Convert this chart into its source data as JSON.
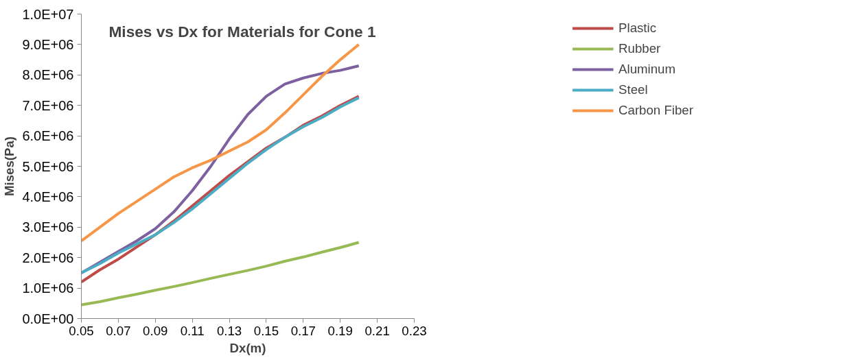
{
  "chart_data": {
    "type": "line",
    "title": "Mises vs Dx for Materials for Cone 1",
    "xlabel": "Dx(m)",
    "ylabel": "Mises(Pa)",
    "x": [
      0.05,
      0.06,
      0.07,
      0.08,
      0.09,
      0.1,
      0.11,
      0.12,
      0.13,
      0.14,
      0.15,
      0.16,
      0.17,
      0.18,
      0.19,
      0.2
    ],
    "series": [
      {
        "name": "Plastic",
        "color": "#be4b48",
        "values": [
          1200000,
          1600000,
          1950000,
          2350000,
          2750000,
          3200000,
          3700000,
          4200000,
          4700000,
          5150000,
          5600000,
          5950000,
          6350000,
          6650000,
          7000000,
          7300000
        ]
      },
      {
        "name": "Rubber",
        "color": "#98b954",
        "values": [
          450000,
          550000,
          680000,
          800000,
          930000,
          1050000,
          1180000,
          1320000,
          1450000,
          1580000,
          1720000,
          1880000,
          2020000,
          2180000,
          2330000,
          2500000
        ]
      },
      {
        "name": "Aluminum",
        "color": "#7d60a0",
        "values": [
          1500000,
          1850000,
          2200000,
          2550000,
          2950000,
          3500000,
          4200000,
          5000000,
          5900000,
          6700000,
          7300000,
          7700000,
          7900000,
          8050000,
          8150000,
          8300000
        ]
      },
      {
        "name": "Steel",
        "color": "#4bacc6",
        "values": [
          1500000,
          1800000,
          2150000,
          2450000,
          2750000,
          3150000,
          3600000,
          4100000,
          4600000,
          5100000,
          5550000,
          5950000,
          6300000,
          6600000,
          6950000,
          7250000
        ]
      },
      {
        "name": "Carbon Fiber",
        "color": "#f79646",
        "values": [
          2550000,
          3000000,
          3450000,
          3850000,
          4250000,
          4650000,
          4950000,
          5200000,
          5500000,
          5800000,
          6200000,
          6750000,
          7350000,
          7950000,
          8500000,
          9000000
        ]
      }
    ],
    "xlim": [
      0.05,
      0.23
    ],
    "xticks": [
      0.05,
      0.07,
      0.09,
      0.11,
      0.13,
      0.15,
      0.17,
      0.19,
      0.21,
      0.23
    ],
    "ylim": [
      0,
      10000000
    ],
    "yticks": [
      {
        "value": 0,
        "label": "0.0E+00"
      },
      {
        "value": 1000000,
        "label": "1.0E+06"
      },
      {
        "value": 2000000,
        "label": "2.0E+06"
      },
      {
        "value": 3000000,
        "label": "3.0E+06"
      },
      {
        "value": 4000000,
        "label": "4.0E+06"
      },
      {
        "value": 5000000,
        "label": "5.0E+06"
      },
      {
        "value": 6000000,
        "label": "6.0E+06"
      },
      {
        "value": 7000000,
        "label": "7.0E+06"
      },
      {
        "value": 8000000,
        "label": "8.0E+06"
      },
      {
        "value": 9000000,
        "label": "9.0E+06"
      },
      {
        "value": 10000000,
        "label": "1.0E+07"
      }
    ],
    "grid": false,
    "legend": "top right",
    "marker": "none",
    "line_style": "solid"
  }
}
